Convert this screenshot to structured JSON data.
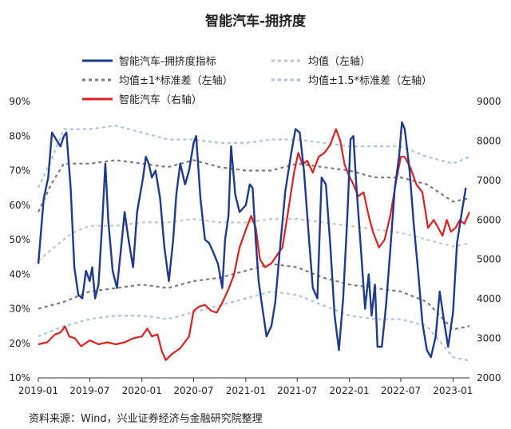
{
  "chart_data": {
    "type": "line",
    "title": "智能汽车-拥挤度",
    "source": "资料来源：Wind，兴业证券经济与金融研究院整理",
    "x_ticks": [
      "2019-01",
      "2019-07",
      "2020-01",
      "2020-07",
      "2021-01",
      "2021-07",
      "2022-01",
      "2022-07",
      "2023-01"
    ],
    "x_range": [
      "2019-01-01",
      "2023-02-28"
    ],
    "y_left": {
      "ticks": [
        "10%",
        "20%",
        "30%",
        "40%",
        "50%",
        "60%",
        "70%",
        "80%",
        "90%"
      ],
      "range": [
        10,
        90
      ]
    },
    "y_right": {
      "ticks": [
        "2000",
        "3000",
        "4000",
        "5000",
        "6000",
        "7000",
        "8000",
        "9000"
      ],
      "range": [
        2000,
        9000
      ]
    },
    "legend": [
      {
        "label": "智能汽车-拥挤度指标",
        "series": "crowding"
      },
      {
        "label": "均值（左轴）",
        "series": "mean"
      },
      {
        "label": "均值±1*标准差（左轴）",
        "series": "band1"
      },
      {
        "label": "均值±1.5*标准差（左轴）",
        "series": "band15"
      },
      {
        "label": "智能汽车（右轴）",
        "series": "index"
      }
    ],
    "colors": {
      "crowding": "#1f3a8f",
      "mean": "#c6c6c6",
      "band1": "#7a7a7a",
      "band15": "#a8c4e8",
      "index": "#e02020"
    },
    "series": {
      "crowding": [
        [
          "2019-01-01",
          43
        ],
        [
          "2019-01-20",
          62
        ],
        [
          "2019-02-05",
          68
        ],
        [
          "2019-02-18",
          81
        ],
        [
          "2019-03-05",
          79
        ],
        [
          "2019-03-20",
          77
        ],
        [
          "2019-04-01",
          80
        ],
        [
          "2019-04-10",
          81
        ],
        [
          "2019-04-25",
          65
        ],
        [
          "2019-05-08",
          42
        ],
        [
          "2019-05-22",
          34
        ],
        [
          "2019-06-05",
          33
        ],
        [
          "2019-06-18",
          41
        ],
        [
          "2019-07-01",
          38
        ],
        [
          "2019-07-10",
          42
        ],
        [
          "2019-07-20",
          33
        ],
        [
          "2019-08-01",
          37
        ],
        [
          "2019-08-15",
          56
        ],
        [
          "2019-08-25",
          72
        ],
        [
          "2019-09-05",
          55
        ],
        [
          "2019-09-20",
          41
        ],
        [
          "2019-10-05",
          36
        ],
        [
          "2019-10-20",
          48
        ],
        [
          "2019-11-01",
          58
        ],
        [
          "2019-11-15",
          50
        ],
        [
          "2019-12-01",
          42
        ],
        [
          "2019-12-15",
          58
        ],
        [
          "2020-01-05",
          68
        ],
        [
          "2020-01-15",
          74
        ],
        [
          "2020-01-25",
          72
        ],
        [
          "2020-02-05",
          68
        ],
        [
          "2020-02-18",
          70
        ],
        [
          "2020-03-05",
          62
        ],
        [
          "2020-03-20",
          48
        ],
        [
          "2020-04-05",
          38
        ],
        [
          "2020-04-20",
          50
        ],
        [
          "2020-05-01",
          63
        ],
        [
          "2020-05-15",
          72
        ],
        [
          "2020-06-01",
          66
        ],
        [
          "2020-06-15",
          70
        ],
        [
          "2020-07-01",
          78
        ],
        [
          "2020-07-10",
          80
        ],
        [
          "2020-07-25",
          62
        ],
        [
          "2020-08-10",
          50
        ],
        [
          "2020-08-25",
          49
        ],
        [
          "2020-09-10",
          46
        ],
        [
          "2020-09-25",
          43
        ],
        [
          "2020-10-10",
          36
        ],
        [
          "2020-10-20",
          50
        ],
        [
          "2020-11-01",
          57
        ],
        [
          "2020-11-10",
          77
        ],
        [
          "2020-11-25",
          63
        ],
        [
          "2020-12-10",
          58
        ],
        [
          "2021-01-01",
          60
        ],
        [
          "2021-01-15",
          66
        ],
        [
          "2021-01-25",
          65
        ],
        [
          "2021-02-05",
          50
        ],
        [
          "2021-02-15",
          38
        ],
        [
          "2021-03-01",
          30
        ],
        [
          "2021-03-15",
          22
        ],
        [
          "2021-04-01",
          25
        ],
        [
          "2021-04-15",
          32
        ],
        [
          "2021-05-01",
          47
        ],
        [
          "2021-05-20",
          64
        ],
        [
          "2021-06-10",
          75
        ],
        [
          "2021-06-25",
          82
        ],
        [
          "2021-07-10",
          81
        ],
        [
          "2021-07-25",
          70
        ],
        [
          "2021-08-10",
          52
        ],
        [
          "2021-08-25",
          36
        ],
        [
          "2021-09-10",
          33
        ],
        [
          "2021-09-25",
          68
        ],
        [
          "2021-10-10",
          66
        ],
        [
          "2021-10-25",
          49
        ],
        [
          "2021-11-10",
          28
        ],
        [
          "2021-11-25",
          18
        ],
        [
          "2021-12-10",
          33
        ],
        [
          "2021-12-25",
          57
        ],
        [
          "2022-01-05",
          79
        ],
        [
          "2022-01-15",
          80
        ],
        [
          "2022-01-25",
          66
        ],
        [
          "2022-02-10",
          48
        ],
        [
          "2022-02-25",
          30
        ],
        [
          "2022-03-10",
          40
        ],
        [
          "2022-03-20",
          28
        ],
        [
          "2022-04-01",
          37
        ],
        [
          "2022-04-10",
          19
        ],
        [
          "2022-04-25",
          19
        ],
        [
          "2022-05-10",
          31
        ],
        [
          "2022-05-25",
          47
        ],
        [
          "2022-06-10",
          65
        ],
        [
          "2022-06-25",
          74
        ],
        [
          "2022-07-05",
          84
        ],
        [
          "2022-07-15",
          82
        ],
        [
          "2022-08-01",
          70
        ],
        [
          "2022-08-15",
          55
        ],
        [
          "2022-09-01",
          40
        ],
        [
          "2022-09-15",
          26
        ],
        [
          "2022-10-01",
          18
        ],
        [
          "2022-10-15",
          16
        ],
        [
          "2022-11-01",
          22
        ],
        [
          "2022-11-15",
          35
        ],
        [
          "2022-12-01",
          26
        ],
        [
          "2022-12-15",
          19
        ],
        [
          "2023-01-01",
          29
        ],
        [
          "2023-01-15",
          49
        ],
        [
          "2023-02-01",
          58
        ],
        [
          "2023-02-15",
          65
        ]
      ],
      "mean": [
        [
          "2019-01-01",
          44
        ],
        [
          "2019-03-01",
          48
        ],
        [
          "2019-05-01",
          52
        ],
        [
          "2019-07-01",
          54
        ],
        [
          "2019-10-01",
          54
        ],
        [
          "2020-01-01",
          55
        ],
        [
          "2020-04-01",
          55
        ],
        [
          "2020-07-01",
          56
        ],
        [
          "2020-10-01",
          55
        ],
        [
          "2021-01-01",
          55
        ],
        [
          "2021-04-01",
          56
        ],
        [
          "2021-07-01",
          56
        ],
        [
          "2021-10-01",
          55
        ],
        [
          "2022-01-01",
          54
        ],
        [
          "2022-04-01",
          53
        ],
        [
          "2022-07-01",
          52
        ],
        [
          "2022-10-01",
          50
        ],
        [
          "2023-01-01",
          48
        ],
        [
          "2023-02-28",
          49
        ]
      ],
      "band1_upper": [
        [
          "2019-01-01",
          58
        ],
        [
          "2019-02-15",
          66
        ],
        [
          "2019-04-01",
          72
        ],
        [
          "2019-07-01",
          72
        ],
        [
          "2019-10-01",
          73
        ],
        [
          "2020-01-01",
          72
        ],
        [
          "2020-04-01",
          71
        ],
        [
          "2020-07-01",
          73
        ],
        [
          "2020-10-01",
          71
        ],
        [
          "2021-01-01",
          70
        ],
        [
          "2021-04-01",
          70
        ],
        [
          "2021-07-01",
          72
        ],
        [
          "2021-10-01",
          71
        ],
        [
          "2022-01-01",
          70
        ],
        [
          "2022-04-01",
          68
        ],
        [
          "2022-07-01",
          68
        ],
        [
          "2022-10-01",
          66
        ],
        [
          "2023-01-01",
          61
        ],
        [
          "2023-02-28",
          62
        ]
      ],
      "band1_lower": [
        [
          "2019-01-01",
          30
        ],
        [
          "2019-04-01",
          32
        ],
        [
          "2019-07-01",
          35
        ],
        [
          "2019-10-01",
          36
        ],
        [
          "2020-01-01",
          37
        ],
        [
          "2020-04-01",
          36
        ],
        [
          "2020-07-01",
          38
        ],
        [
          "2020-10-01",
          39
        ],
        [
          "2021-01-01",
          41
        ],
        [
          "2021-04-01",
          43
        ],
        [
          "2021-07-01",
          42
        ],
        [
          "2021-10-01",
          39
        ],
        [
          "2022-01-01",
          37
        ],
        [
          "2022-04-01",
          36
        ],
        [
          "2022-07-01",
          35
        ],
        [
          "2022-10-01",
          32
        ],
        [
          "2023-01-01",
          24
        ],
        [
          "2023-02-28",
          25
        ]
      ],
      "band15_upper": [
        [
          "2019-01-01",
          65
        ],
        [
          "2019-02-15",
          73
        ],
        [
          "2019-04-01",
          82
        ],
        [
          "2019-07-01",
          82
        ],
        [
          "2019-10-01",
          83
        ],
        [
          "2020-01-01",
          81
        ],
        [
          "2020-04-01",
          79
        ],
        [
          "2020-07-01",
          79
        ],
        [
          "2020-10-01",
          78
        ],
        [
          "2021-01-01",
          78
        ],
        [
          "2021-04-01",
          79
        ],
        [
          "2021-07-01",
          79
        ],
        [
          "2021-10-01",
          78
        ],
        [
          "2022-01-01",
          77
        ],
        [
          "2022-04-01",
          77
        ],
        [
          "2022-07-01",
          77
        ],
        [
          "2022-10-01",
          74
        ],
        [
          "2023-01-01",
          72
        ],
        [
          "2023-02-28",
          74
        ]
      ],
      "band15_lower": [
        [
          "2019-01-01",
          22
        ],
        [
          "2019-04-01",
          25
        ],
        [
          "2019-07-01",
          27
        ],
        [
          "2019-10-01",
          28
        ],
        [
          "2020-01-01",
          28
        ],
        [
          "2020-04-01",
          27
        ],
        [
          "2020-07-01",
          29
        ],
        [
          "2020-10-01",
          31
        ],
        [
          "2021-01-01",
          33
        ],
        [
          "2021-04-01",
          35
        ],
        [
          "2021-07-01",
          34
        ],
        [
          "2021-10-01",
          31
        ],
        [
          "2022-01-01",
          28
        ],
        [
          "2022-04-01",
          27
        ],
        [
          "2022-07-01",
          27
        ],
        [
          "2022-10-01",
          25
        ],
        [
          "2023-01-01",
          16
        ],
        [
          "2023-02-28",
          15
        ]
      ],
      "index": [
        [
          "2019-01-01",
          2850
        ],
        [
          "2019-02-01",
          2900
        ],
        [
          "2019-03-01",
          3100
        ],
        [
          "2019-03-20",
          3150
        ],
        [
          "2019-04-05",
          3300
        ],
        [
          "2019-04-20",
          3050
        ],
        [
          "2019-05-10",
          3000
        ],
        [
          "2019-06-01",
          2800
        ],
        [
          "2019-07-01",
          2950
        ],
        [
          "2019-08-01",
          2850
        ],
        [
          "2019-09-01",
          2900
        ],
        [
          "2019-10-01",
          2850
        ],
        [
          "2019-11-01",
          2900
        ],
        [
          "2019-12-01",
          3000
        ],
        [
          "2020-01-01",
          3050
        ],
        [
          "2020-01-20",
          3250
        ],
        [
          "2020-02-05",
          3050
        ],
        [
          "2020-02-25",
          3100
        ],
        [
          "2020-03-10",
          2700
        ],
        [
          "2020-03-25",
          2450
        ],
        [
          "2020-04-15",
          2600
        ],
        [
          "2020-05-15",
          2750
        ],
        [
          "2020-06-15",
          3050
        ],
        [
          "2020-07-01",
          3700
        ],
        [
          "2020-07-20",
          3800
        ],
        [
          "2020-08-10",
          3850
        ],
        [
          "2020-09-01",
          3700
        ],
        [
          "2020-09-20",
          3650
        ],
        [
          "2020-10-10",
          3900
        ],
        [
          "2020-11-01",
          4250
        ],
        [
          "2020-11-20",
          4600
        ],
        [
          "2020-12-10",
          5300
        ],
        [
          "2021-01-01",
          5750
        ],
        [
          "2021-01-20",
          6100
        ],
        [
          "2021-02-05",
          5800
        ],
        [
          "2021-02-20",
          5000
        ],
        [
          "2021-03-10",
          4800
        ],
        [
          "2021-04-01",
          4900
        ],
        [
          "2021-04-20",
          5100
        ],
        [
          "2021-05-10",
          5300
        ],
        [
          "2021-06-01",
          6300
        ],
        [
          "2021-06-20",
          7200
        ],
        [
          "2021-07-05",
          7700
        ],
        [
          "2021-07-20",
          7400
        ],
        [
          "2021-08-05",
          7500
        ],
        [
          "2021-08-25",
          7200
        ],
        [
          "2021-09-15",
          7600
        ],
        [
          "2021-10-05",
          7700
        ],
        [
          "2021-10-25",
          7900
        ],
        [
          "2021-11-15",
          8300
        ],
        [
          "2021-11-30",
          8000
        ],
        [
          "2021-12-15",
          7400
        ],
        [
          "2022-01-01",
          7100
        ],
        [
          "2022-01-15",
          6900
        ],
        [
          "2022-02-01",
          6600
        ],
        [
          "2022-02-20",
          6700
        ],
        [
          "2022-03-10",
          6100
        ],
        [
          "2022-03-25",
          5700
        ],
        [
          "2022-04-15",
          5300
        ],
        [
          "2022-05-05",
          5500
        ],
        [
          "2022-05-25",
          6100
        ],
        [
          "2022-06-15",
          7000
        ],
        [
          "2022-07-01",
          7600
        ],
        [
          "2022-07-15",
          7600
        ],
        [
          "2022-08-05",
          7300
        ],
        [
          "2022-08-25",
          6900
        ],
        [
          "2022-09-15",
          6700
        ],
        [
          "2022-10-05",
          5800
        ],
        [
          "2022-10-25",
          6000
        ],
        [
          "2022-11-10",
          5800
        ],
        [
          "2022-11-25",
          5600
        ],
        [
          "2022-12-10",
          6000
        ],
        [
          "2022-12-25",
          5700
        ],
        [
          "2023-01-10",
          5800
        ],
        [
          "2023-01-25",
          6000
        ],
        [
          "2023-02-10",
          5900
        ],
        [
          "2023-02-28",
          6200
        ]
      ]
    }
  }
}
